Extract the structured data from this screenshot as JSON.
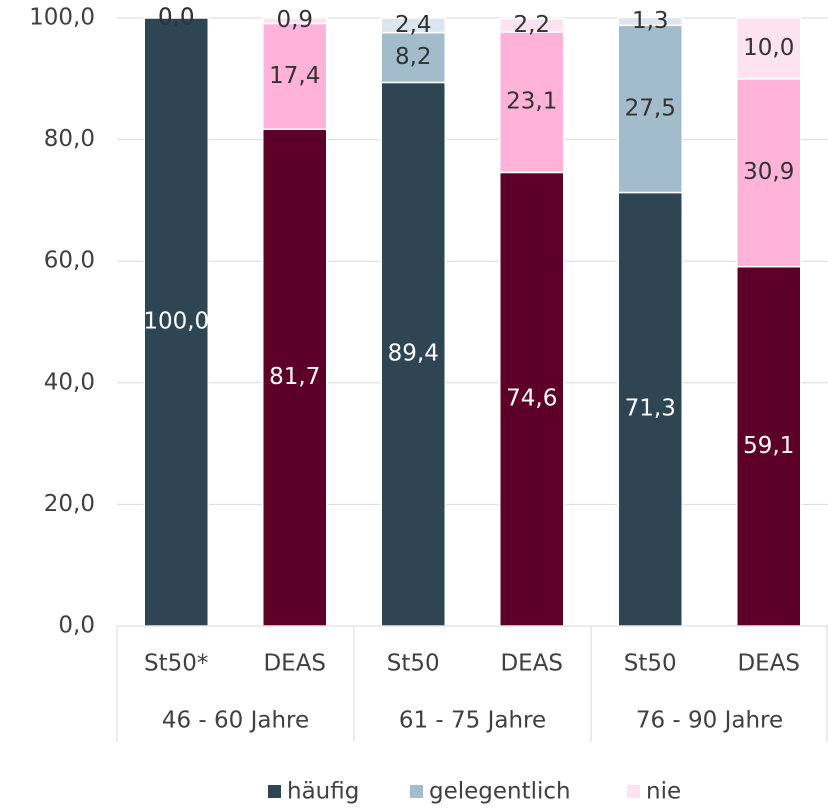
{
  "chart_data": {
    "type": "stacked_bar",
    "categories": [
      "St50*",
      "DEAS",
      "St50",
      "DEAS",
      "St50",
      "DEAS"
    ],
    "groups": [
      "46 - 60 Jahre",
      "61 - 75 Jahre",
      "76 - 90 Jahre"
    ],
    "series": [
      {
        "name": "häufig",
        "color": "#2e4553",
        "colors": [
          "#2e4553",
          "#5c0029",
          "#2e4553",
          "#5c0029",
          "#2e4553",
          "#5c0029"
        ],
        "values": [
          100.0,
          81.7,
          89.4,
          74.6,
          71.3,
          59.1
        ],
        "value_labels": [
          "100,0",
          "81,7",
          "89,4",
          "74,6",
          "71,3",
          "59,1"
        ]
      },
      {
        "name": "gelegentlich",
        "color": "#a3bccb",
        "colors": [
          "#a3bccb",
          "#ffb3d9",
          "#a3bccb",
          "#ffb3d9",
          "#a3bccb",
          "#ffb3d9"
        ],
        "values": [
          0.0,
          17.4,
          8.2,
          23.1,
          27.5,
          30.9
        ],
        "value_labels": [
          "0,0",
          "17,4",
          "8,2",
          "23,1",
          "27,5",
          "30,9"
        ]
      },
      {
        "name": "nie",
        "color": "#fde3f0",
        "colors": [
          "#dce6ec",
          "#fde3f0",
          "#dce6ec",
          "#fde3f0",
          "#dce6ec",
          "#fde3f0"
        ],
        "values": [
          0.0,
          0.9,
          2.4,
          2.2,
          1.3,
          10.0
        ],
        "value_labels": [
          "0,0",
          "0,9",
          "2,4",
          "2,2",
          "1,3",
          "10,0"
        ]
      }
    ],
    "ylim": [
      0,
      100
    ],
    "yticks": [
      {
        "value": 0,
        "label": "0,0"
      },
      {
        "value": 20,
        "label": "20,0"
      },
      {
        "value": 40,
        "label": "40,0"
      },
      {
        "value": 60,
        "label": "60,0"
      },
      {
        "value": 80,
        "label": "80,0"
      },
      {
        "value": 100,
        "label": "100,0"
      }
    ],
    "grid": true,
    "legend": "bottom"
  }
}
